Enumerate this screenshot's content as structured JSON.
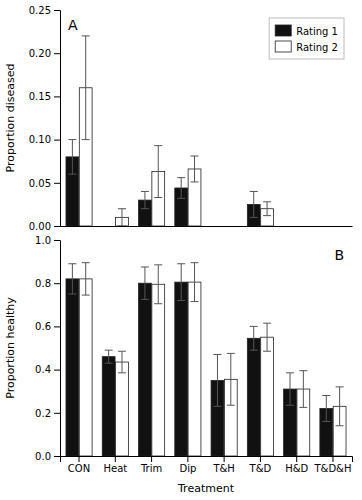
{
  "chart_data": [
    {
      "type": "bar",
      "categories": [
        "CON",
        "Heat",
        "Trim",
        "Dip",
        "T&H",
        "T&D",
        "H&D",
        "T&D&H"
      ],
      "series": [
        {
          "name": "Rating 1",
          "color": "#111111",
          "values": [
            0.08,
            0.0,
            0.03,
            0.044,
            0.0,
            0.025,
            0.0,
            0.0
          ],
          "errors": [
            0.02,
            0.0,
            0.01,
            0.012,
            0.0,
            0.015,
            0.0,
            0.0
          ]
        },
        {
          "name": "Rating 2",
          "color": "#ffffff",
          "values": [
            0.16,
            0.01,
            0.063,
            0.066,
            0.0,
            0.02,
            0.0,
            0.0
          ],
          "errors": [
            0.06,
            0.01,
            0.03,
            0.015,
            0.0,
            0.008,
            0.0,
            0.0
          ]
        }
      ],
      "y_label": "Proportion diseased",
      "ylim": [
        0.0,
        0.25
      ],
      "yticks": [
        {
          "value": 0.0,
          "label": "0.00"
        },
        0.05,
        {
          "value": 0.1,
          "label": "0.10"
        },
        0.15,
        {
          "value": 0.2,
          "label": "0.20"
        },
        0.25
      ],
      "tick_labels": "y",
      "legend": "upper right",
      "grid": false,
      "annotations": [
        "A"
      ]
    },
    {
      "type": "bar",
      "categories": [
        "CON",
        "Heat",
        "Trim",
        "Dip",
        "T&H",
        "T&D",
        "H&D",
        "T&D&H"
      ],
      "series": [
        {
          "name": "Rating 1",
          "color": "#111111",
          "values": [
            0.82,
            0.46,
            0.8,
            0.805,
            0.35,
            0.545,
            0.31,
            0.22
          ],
          "errors": [
            0.07,
            0.03,
            0.075,
            0.085,
            0.12,
            0.055,
            0.075,
            0.06
          ]
        },
        {
          "name": "Rating 2",
          "color": "#ffffff",
          "values": [
            0.82,
            0.435,
            0.795,
            0.805,
            0.355,
            0.55,
            0.31,
            0.23
          ],
          "errors": [
            0.075,
            0.05,
            0.09,
            0.09,
            0.12,
            0.065,
            0.085,
            0.09
          ]
        }
      ],
      "x_label": "Treatment",
      "y_label": "Proportion healthy",
      "ylim": [
        0.0,
        1.0
      ],
      "yticks": [
        {
          "value": 0.0,
          "label": "0.0"
        },
        0.2,
        0.4,
        0.6,
        0.8,
        {
          "value": 1.0,
          "label": "1.0"
        }
      ],
      "grid": false,
      "annotations": [
        "B"
      ]
    }
  ]
}
